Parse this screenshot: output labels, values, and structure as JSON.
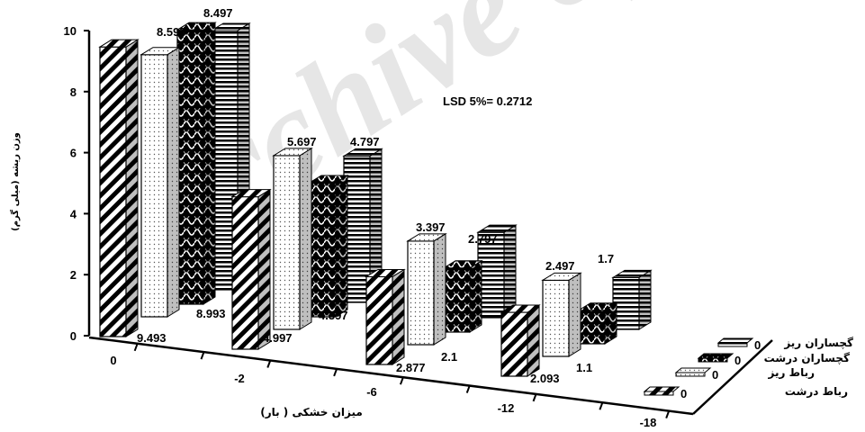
{
  "watermark": "Archive of SID",
  "chart_data": {
    "type": "bar",
    "title": "",
    "ylabel": "وزن ریشه (میلی گرم)",
    "xlabel": "میزان خشکی ( بار)",
    "ylim": [
      0,
      10
    ],
    "y_ticks": [
      "0",
      "2",
      "4",
      "6",
      "8",
      "10"
    ],
    "categories": [
      "0",
      "-2",
      "-6",
      "-12",
      "-18"
    ],
    "lsd_annotation": "LSD 5%= 0.2712",
    "series": [
      {
        "name": "رباط درشت",
        "pattern": "diagonal",
        "values": [
          9.493,
          4.997,
          2.877,
          2.093,
          0
        ]
      },
      {
        "name": "رباط ریز",
        "pattern": "dots",
        "values": [
          8.593,
          5.697,
          3.397,
          2.497,
          0
        ]
      },
      {
        "name": "گچساران درشت",
        "pattern": "weave",
        "values": [
          8.993,
          4.397,
          2.1,
          1.1,
          0
        ]
      },
      {
        "name": "گچساران ریز",
        "pattern": "horizontal",
        "values": [
          8.497,
          4.797,
          2.797,
          1.7,
          0
        ]
      }
    ],
    "value_labels": {
      "0": [
        "9.493",
        "8.593",
        "8.993",
        "8.497"
      ],
      "-2": [
        "4.997",
        "5.697",
        "4.397",
        "4.797"
      ],
      "-6": [
        "2.877",
        "3.397",
        "2.1",
        "2.797"
      ],
      "-12": [
        "2.093",
        "2.497",
        "1.1",
        "1.7"
      ]
    },
    "legend": {
      "placement": "bottom-right",
      "items": [
        "گچساران ریز",
        "گچساران درشت",
        "رباط ریز",
        "رباط درشت"
      ],
      "values": [
        "0",
        "0",
        "0",
        "0"
      ]
    }
  }
}
